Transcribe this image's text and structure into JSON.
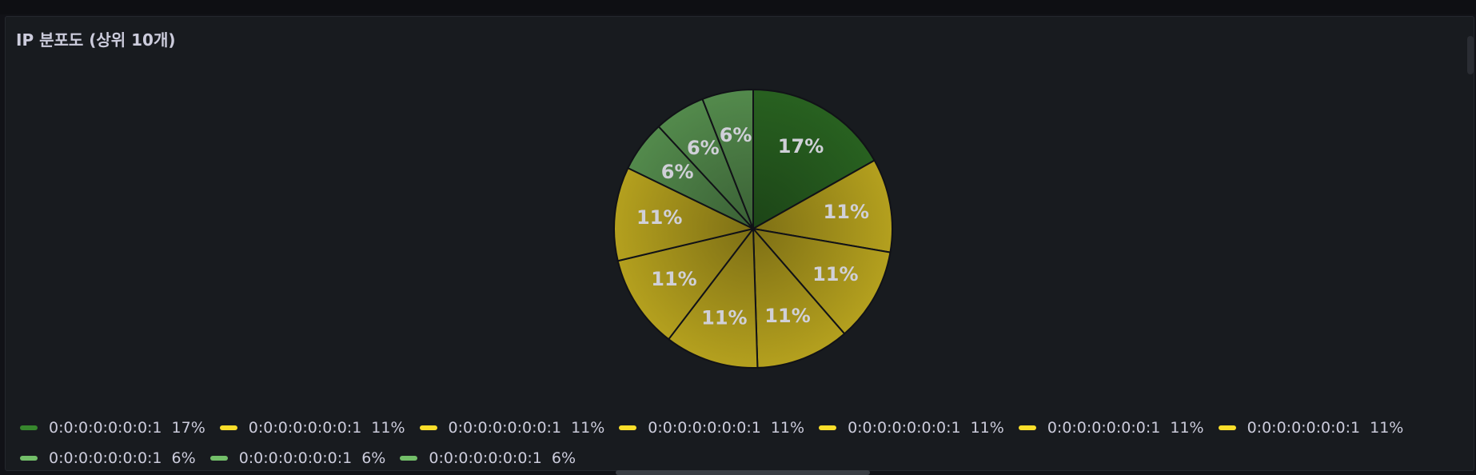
{
  "panel": {
    "title": "IP 분포도 (상위 10개)"
  },
  "chart_data": {
    "type": "pie",
    "title": "IP 분포도 (상위 10개)",
    "slices": [
      {
        "label": "0:0:0:0:0:0:0:1",
        "value": 17,
        "display": "17%",
        "color": "#37872d"
      },
      {
        "label": "0:0:0:0:0:0:0:1",
        "value": 11,
        "display": "11%",
        "color": "#fade2a"
      },
      {
        "label": "0:0:0:0:0:0:0:1",
        "value": 11,
        "display": "11%",
        "color": "#fade2a"
      },
      {
        "label": "0:0:0:0:0:0:0:1",
        "value": 11,
        "display": "11%",
        "color": "#fade2a"
      },
      {
        "label": "0:0:0:0:0:0:0:1",
        "value": 11,
        "display": "11%",
        "color": "#fade2a"
      },
      {
        "label": "0:0:0:0:0:0:0:1",
        "value": 11,
        "display": "11%",
        "color": "#fade2a"
      },
      {
        "label": "0:0:0:0:0:0:0:1",
        "value": 11,
        "display": "11%",
        "color": "#fade2a"
      },
      {
        "label": "0:0:0:0:0:0:0:1",
        "value": 6,
        "display": "6%",
        "color": "#73bf69"
      },
      {
        "label": "0:0:0:0:0:0:0:1",
        "value": 6,
        "display": "6%",
        "color": "#73bf69"
      },
      {
        "label": "0:0:0:0:0:0:0:1",
        "value": 6,
        "display": "6%",
        "color": "#73bf69"
      }
    ],
    "legend_placement": "bottom"
  }
}
